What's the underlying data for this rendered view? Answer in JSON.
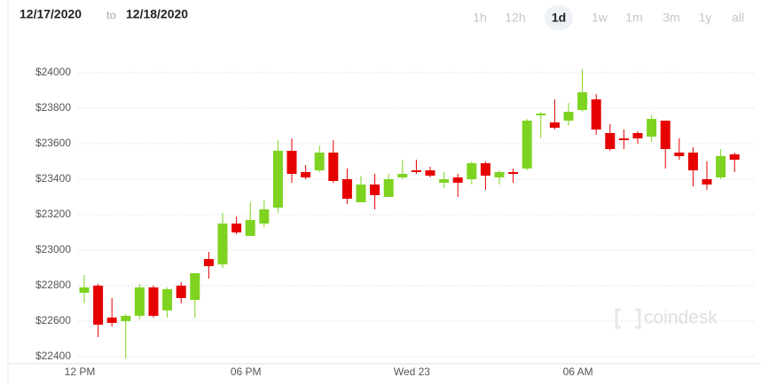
{
  "header": {
    "from": "12/17/2020",
    "to_word": "to",
    "to": "12/18/2020"
  },
  "ranges": [
    "1h",
    "12h",
    "1d",
    "1w",
    "1m",
    "3m",
    "1y",
    "all"
  ],
  "selected_range": "1d",
  "watermark": "coindesk",
  "chart_data": {
    "type": "candlestick",
    "categories": [
      "12 PM",
      null,
      null,
      null,
      null,
      null,
      null,
      null,
      null,
      null,
      null,
      null,
      "06 PM",
      null,
      null,
      null,
      null,
      null,
      null,
      null,
      null,
      null,
      null,
      null,
      "Wed 23",
      null,
      null,
      null,
      null,
      null,
      null,
      null,
      null,
      null,
      null,
      null,
      "06 AM",
      null,
      null,
      null,
      null,
      null,
      null,
      null,
      null,
      null,
      null,
      null
    ],
    "open": [
      22760,
      22800,
      22620,
      22600,
      22630,
      22790,
      22660,
      22800,
      22720,
      22950,
      22920,
      23150,
      23080,
      23150,
      23240,
      23560,
      23440,
      23450,
      23550,
      23400,
      23270,
      23370,
      23300,
      23410,
      23450,
      23450,
      23380,
      23410,
      23400,
      23490,
      23410,
      23440,
      23460,
      23760,
      23720,
      23730,
      23790,
      23850,
      23660,
      23630,
      23660,
      23640,
      23730,
      23550,
      23550,
      23400,
      23410,
      23540
    ],
    "high": [
      22860,
      22810,
      22730,
      22640,
      22810,
      22800,
      22790,
      22820,
      22870,
      22990,
      23210,
      23190,
      23270,
      23280,
      23620,
      23630,
      23480,
      23590,
      23620,
      23460,
      23420,
      23430,
      23430,
      23510,
      23510,
      23470,
      23440,
      23430,
      23500,
      23500,
      23450,
      23460,
      23740,
      23780,
      23850,
      23830,
      24020,
      23880,
      23710,
      23680,
      23670,
      23760,
      23730,
      23630,
      23580,
      23500,
      23570,
      23550
    ],
    "low": [
      22700,
      22510,
      22570,
      22390,
      22610,
      22620,
      22620,
      22700,
      22620,
      22840,
      22900,
      23090,
      23080,
      23130,
      23210,
      23380,
      23400,
      23440,
      23380,
      23260,
      23270,
      23230,
      23300,
      23400,
      23430,
      23410,
      23350,
      23300,
      23370,
      23340,
      23370,
      23380,
      23450,
      23630,
      23680,
      23700,
      23780,
      23650,
      23560,
      23570,
      23600,
      23610,
      23460,
      23510,
      23360,
      23340,
      23400,
      23440
    ],
    "close": [
      22790,
      22580,
      22590,
      22630,
      22790,
      22630,
      22780,
      22730,
      22870,
      22910,
      23150,
      23100,
      23170,
      23230,
      23560,
      23430,
      23410,
      23550,
      23390,
      23290,
      23370,
      23310,
      23400,
      23430,
      23440,
      23420,
      23400,
      23380,
      23490,
      23420,
      23440,
      23430,
      23730,
      23770,
      23690,
      23780,
      23890,
      23680,
      23570,
      23620,
      23630,
      23740,
      23570,
      23530,
      23450,
      23370,
      23530,
      23510
    ],
    "up_color": "#7ed321",
    "down_color": "#e60000",
    "ylim": [
      22370,
      24110
    ],
    "yticks": [
      {
        "value": 22400,
        "label": "$22400"
      },
      {
        "value": 22600,
        "label": "$22600"
      },
      {
        "value": 22800,
        "label": "$22800"
      },
      {
        "value": 23000,
        "label": "$23000"
      },
      {
        "value": 23200,
        "label": "$23200"
      },
      {
        "value": 23400,
        "label": "$23400"
      },
      {
        "value": 23600,
        "label": "$23600"
      },
      {
        "value": 23800,
        "label": "$23800"
      },
      {
        "value": 24000,
        "label": "$24000"
      }
    ],
    "grid": true
  }
}
